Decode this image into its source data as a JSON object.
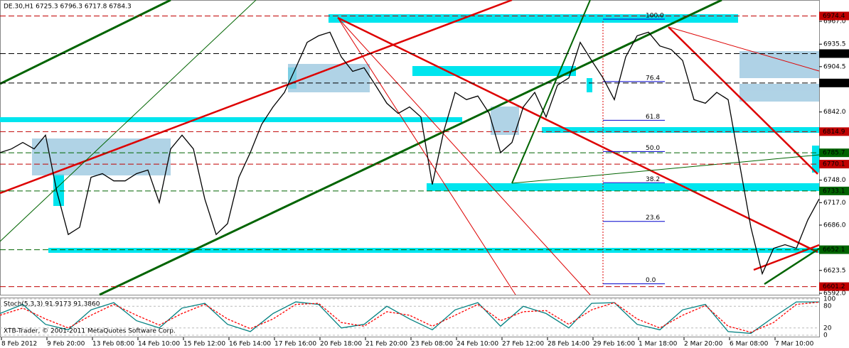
{
  "chart_data": {
    "type": "line",
    "title": "DE.30,H1  6725.3 6796.3 6717.8 6784.3",
    "footer": "XTB-Trader, © 2001-2011 MetaQuotes Software Corp.",
    "x_labels": [
      "8 Feb 2012",
      "9 Feb 20:00",
      "13 Feb 08:00",
      "14 Feb 10:00",
      "15 Feb 12:00",
      "16 Feb 14:00",
      "17 Feb 16:00",
      "20 Feb 18:00",
      "21 Feb 20:00",
      "23 Feb 08:00",
      "24 Feb 10:00",
      "27 Feb 12:00",
      "28 Feb 14:00",
      "29 Feb 16:00",
      "1 Mar 18:00",
      "2 Mar 20:00",
      "6 Mar 08:00",
      "7 Mar 10:00"
    ],
    "series": [
      {
        "color": "#000000",
        "values": [
          6786,
          6791,
          6800,
          6791,
          6810,
          6732,
          6673,
          6683,
          6752,
          6757,
          6747,
          6747,
          6757,
          6762,
          6717,
          6791,
          6810,
          6791,
          6722,
          6673,
          6688,
          6752,
          6786,
          6825,
          6849,
          6869,
          6903,
          6938,
          6947,
          6952,
          6918,
          6898,
          6903,
          6879,
          6854,
          6840,
          6849,
          6835,
          6742,
          6815,
          6869,
          6859,
          6864,
          6840,
          6786,
          6800,
          6849,
          6869,
          6835,
          6879,
          6889,
          6938,
          6913,
          6889,
          6859,
          6918,
          6947,
          6952,
          6933,
          6928,
          6913,
          6859,
          6854,
          6869,
          6859,
          6771,
          6683,
          6619,
          6654,
          6659,
          6654,
          6693,
          6722
        ]
      }
    ],
    "ylim": [
      6590,
      6996.4
    ],
    "yticks": [
      {
        "value": 6967,
        "label": "6967.0"
      },
      6935.5,
      6904.5,
      {
        "value": 6842,
        "label": "6842.0"
      },
      {
        "value": 6748,
        "label": "6748.0"
      },
      {
        "value": 6717,
        "label": "6717.0"
      },
      {
        "value": 6686,
        "label": "6686.0"
      },
      6623.5,
      {
        "value": 6592,
        "label": "6592.0"
      }
    ],
    "levels": [
      {
        "value": 6974.4,
        "color": "#c00000"
      },
      {
        "value": 6922.5,
        "color": "#000000"
      },
      {
        "value": 6882,
        "label": "6882.0",
        "color": "#000000"
      },
      {
        "value": 6814.9,
        "color": "#c00000"
      },
      {
        "value": 6785.7,
        "color": "#006400"
      },
      {
        "value": 6770.1,
        "color": "#c00000"
      },
      {
        "value": 6733.1,
        "color": "#006400"
      },
      {
        "value": 6652.1,
        "color": "#006400"
      },
      {
        "value": 6601.2,
        "color": "#c00000"
      }
    ],
    "fib": {
      "high": 6970,
      "low": 6605,
      "color": "#0000cc",
      "ratios": [
        {
          "value": 100,
          "label": "100.0"
        },
        {
          "value": 76.4,
          "label": "76.4"
        },
        {
          "value": 61.8,
          "label": "61.8"
        },
        {
          "value": 50,
          "label": "50.0"
        },
        {
          "value": 38.2,
          "label": "38.2"
        },
        {
          "value": 23.6,
          "label": "23.6"
        },
        {
          "value": 0,
          "label": "0.0"
        }
      ]
    },
    "oscillator": {
      "label": "Stoch(5,3,3) 91.9173 91.3860",
      "ylim": [
        0,
        100
      ],
      "yticks": [
        0,
        20,
        80,
        100
      ],
      "series": [
        {
          "color": "#008080",
          "values": [
            60,
            85,
            30,
            15,
            70,
            90,
            40,
            20,
            75,
            88,
            30,
            10,
            60,
            92,
            85,
            20,
            30,
            80,
            45,
            15,
            70,
            90,
            25,
            80,
            60,
            20,
            88,
            90,
            30,
            15,
            70,
            85,
            10,
            5,
            50,
            92,
            91.9173
          ]
        },
        {
          "color": "#ff0000",
          "values": [
            55,
            75,
            45,
            20,
            55,
            85,
            55,
            28,
            60,
            85,
            45,
            18,
            45,
            85,
            88,
            35,
            25,
            65,
            55,
            25,
            55,
            85,
            40,
            65,
            68,
            30,
            70,
            90,
            45,
            20,
            55,
            82,
            25,
            8,
            35,
            85,
            91.386
          ]
        }
      ]
    }
  }
}
